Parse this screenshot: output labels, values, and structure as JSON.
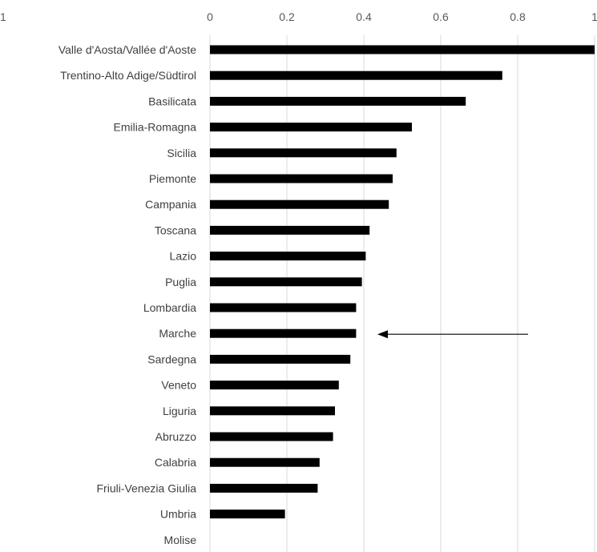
{
  "chart_data": {
    "type": "bar",
    "orientation": "horizontal",
    "title": "",
    "xlabel": "",
    "ylabel": "",
    "xlim": [
      0,
      1
    ],
    "x_ticks": [
      "0",
      "0.2",
      "0.4",
      "0.6",
      "0.8",
      "1"
    ],
    "left_edge_tick_label": "1",
    "grid": "vertical",
    "legend": "none",
    "bar_color": "#000000",
    "grid_color": "#d9d9d9",
    "categories": [
      "Valle d'Aosta/Vallée d'Aoste",
      "Trentino-Alto Adige/Südtirol",
      "Basilicata",
      "Emilia-Romagna",
      "Sicilia",
      "Piemonte",
      "Campania",
      "Toscana",
      "Lazio",
      "Puglia",
      "Lombardia",
      "Marche",
      "Sardegna",
      "Veneto",
      "Liguria",
      "Abruzzo",
      "Calabria",
      "Friuli-Venezia Giulia",
      "Umbria",
      "Molise"
    ],
    "values": [
      1.0,
      0.76,
      0.665,
      0.525,
      0.485,
      0.475,
      0.465,
      0.415,
      0.405,
      0.395,
      0.38,
      0.38,
      0.365,
      0.335,
      0.325,
      0.32,
      0.285,
      0.28,
      0.195,
      0.0
    ],
    "annotation": {
      "type": "arrow",
      "points_to": "Marche"
    }
  }
}
